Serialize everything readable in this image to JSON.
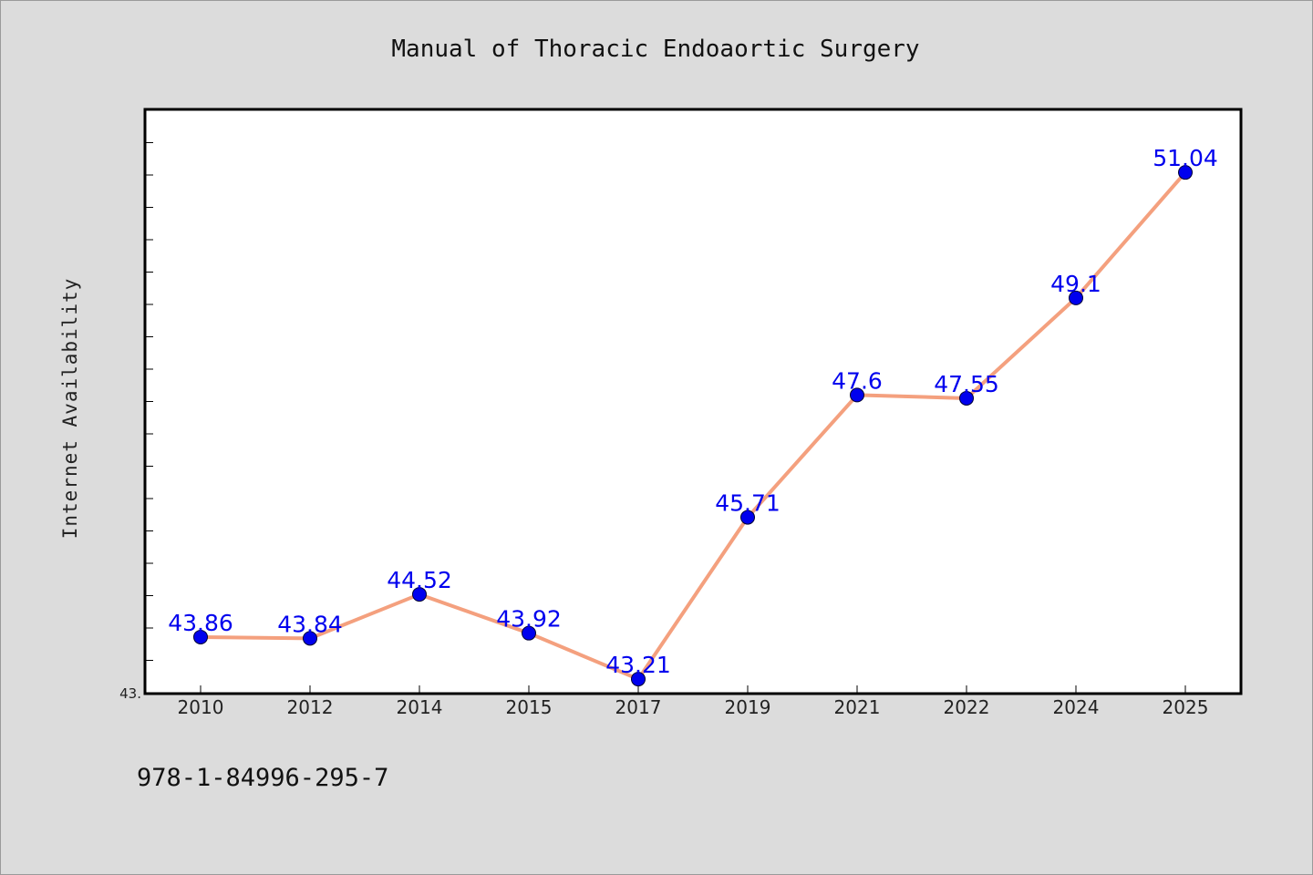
{
  "chart_data": {
    "type": "line",
    "title": "Manual of Thoracic Endoaortic Surgery",
    "xlabel": "",
    "ylabel": "Internet Availability",
    "categories": [
      "2010",
      "2012",
      "2014",
      "2015",
      "2017",
      "2019",
      "2021",
      "2022",
      "2024",
      "2025"
    ],
    "series": [
      {
        "values": [
          43.86,
          43.84,
          44.52,
          43.92,
          43.21,
          45.71,
          47.6,
          47.55,
          49.1,
          51.04
        ],
        "data_labels": [
          "43.86",
          "43.84",
          "44.52",
          "43.92",
          "43.21",
          "45.71",
          "47.6",
          "47.55",
          "49.1",
          "51.04"
        ]
      }
    ],
    "ylim": [
      43.0,
      52.0
    ],
    "yticks_printed": [
      "43."
    ],
    "grid": false,
    "legend": "none",
    "colors": {
      "line": "#f4a07e",
      "marker": "#0000ee",
      "data_label": "#0000ee",
      "background": "#dcdcdc",
      "plot_area": "#ffffff"
    }
  },
  "footer": {
    "isbn": "978-1-84996-295-7"
  }
}
